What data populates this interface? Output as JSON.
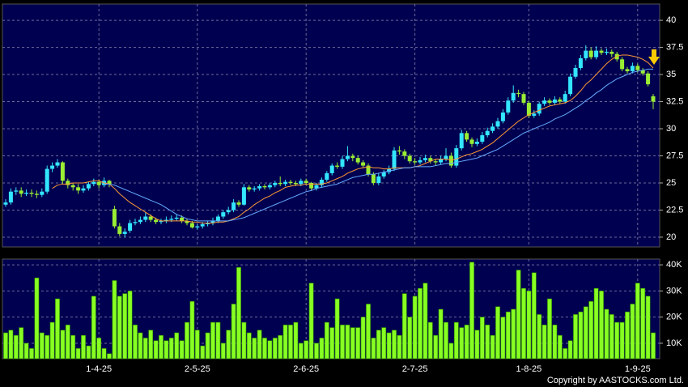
{
  "chart_data": [
    {
      "type": "candlestick",
      "categories": [
        null,
        null,
        null,
        null,
        null,
        null,
        null,
        null,
        null,
        null,
        null,
        null,
        null,
        null,
        null,
        null,
        null,
        null,
        "1-4-25",
        null,
        null,
        null,
        null,
        null,
        null,
        null,
        null,
        null,
        null,
        null,
        null,
        null,
        null,
        null,
        null,
        null,
        null,
        "2-5-25",
        null,
        null,
        null,
        null,
        null,
        null,
        null,
        null,
        null,
        null,
        null,
        null,
        null,
        null,
        null,
        null,
        null,
        null,
        null,
        null,
        "2-6-25",
        null,
        null,
        null,
        null,
        null,
        null,
        null,
        null,
        null,
        null,
        null,
        null,
        null,
        null,
        null,
        null,
        null,
        null,
        null,
        null,
        "2-7-25",
        null,
        null,
        null,
        null,
        null,
        null,
        null,
        null,
        null,
        null,
        null,
        null,
        null,
        null,
        null,
        null,
        null,
        null,
        null,
        null,
        null,
        "1-8-25",
        null,
        null,
        null,
        null,
        null,
        null,
        null,
        null,
        null,
        null,
        null,
        null,
        null,
        null,
        null,
        null,
        null,
        null,
        null,
        null,
        "1-9-25",
        null,
        null,
        null
      ],
      "ohlc": [
        [
          23.0,
          23.5,
          22.8,
          23.2
        ],
        [
          23.2,
          24.5,
          23.0,
          24.2
        ],
        [
          24.2,
          24.6,
          23.9,
          24.3
        ],
        [
          24.3,
          24.6,
          23.7,
          24.0
        ],
        [
          24.0,
          24.4,
          23.8,
          24.1
        ],
        [
          24.1,
          24.4,
          23.7,
          24.0
        ],
        [
          24.0,
          24.3,
          23.6,
          23.9
        ],
        [
          23.9,
          24.5,
          23.7,
          24.2
        ],
        [
          24.2,
          26.6,
          24.0,
          26.3
        ],
        [
          26.3,
          26.9,
          26.0,
          26.6
        ],
        [
          26.6,
          27.2,
          26.4,
          26.9
        ],
        [
          26.9,
          27.0,
          24.9,
          25.2
        ],
        [
          25.2,
          25.4,
          24.5,
          24.8
        ],
        [
          24.8,
          25.0,
          24.3,
          24.6
        ],
        [
          24.6,
          24.9,
          24.0,
          24.3
        ],
        [
          24.3,
          24.8,
          24.1,
          24.5
        ],
        [
          24.5,
          25.1,
          24.3,
          24.9
        ],
        [
          24.9,
          25.4,
          24.7,
          25.1
        ],
        [
          25.1,
          25.3,
          24.5,
          24.8
        ],
        [
          24.8,
          25.5,
          24.6,
          25.2
        ],
        [
          25.2,
          25.3,
          24.6,
          24.9
        ],
        [
          22.6,
          22.9,
          20.8,
          21.0
        ],
        [
          21.0,
          21.3,
          20.1,
          20.3
        ],
        [
          20.3,
          20.8,
          20.0,
          20.5
        ],
        [
          20.6,
          21.6,
          20.4,
          21.3
        ],
        [
          21.3,
          21.7,
          21.1,
          21.4
        ],
        [
          21.4,
          21.9,
          21.2,
          21.6
        ],
        [
          21.6,
          22.3,
          21.4,
          21.9
        ],
        [
          21.9,
          22.1,
          21.4,
          21.6
        ],
        [
          21.6,
          21.8,
          21.2,
          21.4
        ],
        [
          21.4,
          21.7,
          21.2,
          21.5
        ],
        [
          21.5,
          21.9,
          21.3,
          21.6
        ],
        [
          21.6,
          22.0,
          21.4,
          21.7
        ],
        [
          21.7,
          22.1,
          21.5,
          21.8
        ],
        [
          21.8,
          22.0,
          21.3,
          21.5
        ],
        [
          21.5,
          21.7,
          21.1,
          21.3
        ],
        [
          21.3,
          21.5,
          20.8,
          20.9
        ],
        [
          20.9,
          21.2,
          20.7,
          21.0
        ],
        [
          21.0,
          21.4,
          20.8,
          21.2
        ],
        [
          21.2,
          21.5,
          21.0,
          21.3
        ],
        [
          21.3,
          21.8,
          21.1,
          21.5
        ],
        [
          21.5,
          22.1,
          21.3,
          21.9
        ],
        [
          21.9,
          22.5,
          21.7,
          22.3
        ],
        [
          22.3,
          22.8,
          22.1,
          22.5
        ],
        [
          22.5,
          23.5,
          22.3,
          23.2
        ],
        [
          23.2,
          23.4,
          22.8,
          23.0
        ],
        [
          23.0,
          24.9,
          22.9,
          24.6
        ],
        [
          24.6,
          24.8,
          24.2,
          24.4
        ],
        [
          24.4,
          24.7,
          24.2,
          24.5
        ],
        [
          24.5,
          24.9,
          24.3,
          24.7
        ],
        [
          24.7,
          24.9,
          24.4,
          24.6
        ],
        [
          24.6,
          25.0,
          24.4,
          24.8
        ],
        [
          24.8,
          25.2,
          24.6,
          25.0
        ],
        [
          25.0,
          25.6,
          24.7,
          24.9
        ],
        [
          24.9,
          25.3,
          24.7,
          25.1
        ],
        [
          25.1,
          25.3,
          24.8,
          25.0
        ],
        [
          25.0,
          25.2,
          24.7,
          24.9
        ],
        [
          24.9,
          25.4,
          24.7,
          25.2
        ],
        [
          25.2,
          25.4,
          24.8,
          25.0
        ],
        [
          25.0,
          25.1,
          24.3,
          24.5
        ],
        [
          24.5,
          25.0,
          24.3,
          24.8
        ],
        [
          24.8,
          25.5,
          24.6,
          25.3
        ],
        [
          25.3,
          26.1,
          25.1,
          25.9
        ],
        [
          25.9,
          26.8,
          25.7,
          26.6
        ],
        [
          26.6,
          26.9,
          26.3,
          26.5
        ],
        [
          26.5,
          27.5,
          26.3,
          27.2
        ],
        [
          27.2,
          28.4,
          27.0,
          27.5
        ],
        [
          27.5,
          27.7,
          27.0,
          27.3
        ],
        [
          27.3,
          27.5,
          26.7,
          26.9
        ],
        [
          26.9,
          27.1,
          26.4,
          26.6
        ],
        [
          26.6,
          26.8,
          25.6,
          25.8
        ],
        [
          25.8,
          26.0,
          24.8,
          25.0
        ],
        [
          25.0,
          25.9,
          24.8,
          25.6
        ],
        [
          25.6,
          26.2,
          25.4,
          26.0
        ],
        [
          26.0,
          26.6,
          25.8,
          26.3
        ],
        [
          26.3,
          28.3,
          26.1,
          28.0
        ],
        [
          28.0,
          28.4,
          27.6,
          27.9
        ],
        [
          27.9,
          28.1,
          27.2,
          27.5
        ],
        [
          27.5,
          27.7,
          26.8,
          27.0
        ],
        [
          27.0,
          27.3,
          26.7,
          26.9
        ],
        [
          26.9,
          27.4,
          26.7,
          27.1
        ],
        [
          27.1,
          27.6,
          26.9,
          27.3
        ],
        [
          27.3,
          27.5,
          26.8,
          27.0
        ],
        [
          27.0,
          27.2,
          26.6,
          26.9
        ],
        [
          26.9,
          27.5,
          26.7,
          27.2
        ],
        [
          27.2,
          28.2,
          27.0,
          27.5
        ],
        [
          27.5,
          27.8,
          26.4,
          26.6
        ],
        [
          26.6,
          28.5,
          26.4,
          28.2
        ],
        [
          28.2,
          29.9,
          28.0,
          29.6
        ],
        [
          29.6,
          29.8,
          28.8,
          29.0
        ],
        [
          29.0,
          29.2,
          28.3,
          28.6
        ],
        [
          28.6,
          29.1,
          28.4,
          28.8
        ],
        [
          28.8,
          29.7,
          28.6,
          29.4
        ],
        [
          29.4,
          30.1,
          29.2,
          29.8
        ],
        [
          29.8,
          30.5,
          29.6,
          30.2
        ],
        [
          30.2,
          31.0,
          30.0,
          30.7
        ],
        [
          30.7,
          31.8,
          30.5,
          31.5
        ],
        [
          31.5,
          32.9,
          31.3,
          32.6
        ],
        [
          32.6,
          34.0,
          32.4,
          33.3
        ],
        [
          33.3,
          33.6,
          32.9,
          33.2
        ],
        [
          33.2,
          33.4,
          32.2,
          32.4
        ],
        [
          32.4,
          32.6,
          31.0,
          31.2
        ],
        [
          31.2,
          31.7,
          31.0,
          31.4
        ],
        [
          31.4,
          32.5,
          31.2,
          32.3
        ],
        [
          32.3,
          32.9,
          32.1,
          32.6
        ],
        [
          32.6,
          32.8,
          32.2,
          32.4
        ],
        [
          32.4,
          33.0,
          32.2,
          32.7
        ],
        [
          32.7,
          32.9,
          32.3,
          32.5
        ],
        [
          32.5,
          33.5,
          32.3,
          33.2
        ],
        [
          33.2,
          35.1,
          33.0,
          34.8
        ],
        [
          34.8,
          35.9,
          34.6,
          35.6
        ],
        [
          35.6,
          36.8,
          35.4,
          36.5
        ],
        [
          36.5,
          37.7,
          36.3,
          37.2
        ],
        [
          37.2,
          37.5,
          36.4,
          36.6
        ],
        [
          36.6,
          37.6,
          36.4,
          37.2
        ],
        [
          37.2,
          37.4,
          36.8,
          37.0
        ],
        [
          37.0,
          37.4,
          36.8,
          37.1
        ],
        [
          37.1,
          37.3,
          36.6,
          36.9
        ],
        [
          36.9,
          37.1,
          36.2,
          36.4
        ],
        [
          36.4,
          36.6,
          35.3,
          35.5
        ],
        [
          35.5,
          35.7,
          35.1,
          35.3
        ],
        [
          35.3,
          36.1,
          35.1,
          35.8
        ],
        [
          35.8,
          36.0,
          35.2,
          35.4
        ],
        [
          35.4,
          35.6,
          34.9,
          35.1
        ],
        [
          35.1,
          35.3,
          33.9,
          34.1
        ],
        [
          33.0,
          33.2,
          31.8,
          32.5
        ]
      ],
      "up_color": "#33e6ff",
      "down_color": "#99ee33",
      "series": [
        {
          "color": "#ff9933",
          "values": [
            null,
            null,
            null,
            null,
            null,
            null,
            null,
            null,
            null,
            24.5,
            24.8,
            24.9,
            24.9,
            25.0,
            25.0,
            25.0,
            25.1,
            25.2,
            25.2,
            25.0,
            24.9,
            24.5,
            24.0,
            23.6,
            23.2,
            22.9,
            22.6,
            22.3,
            22.0,
            21.7,
            21.5,
            21.5,
            21.5,
            21.5,
            21.5,
            21.5,
            21.4,
            21.4,
            21.3,
            21.3,
            21.3,
            21.4,
            21.4,
            21.5,
            21.7,
            21.9,
            22.3,
            22.6,
            23.0,
            23.3,
            23.6,
            23.8,
            24.1,
            24.3,
            24.6,
            24.7,
            24.8,
            24.8,
            24.9,
            24.9,
            24.9,
            24.9,
            25.0,
            25.2,
            25.4,
            25.6,
            25.9,
            26.1,
            26.3,
            26.4,
            26.5,
            26.4,
            26.4,
            26.3,
            26.3,
            26.4,
            26.4,
            26.4,
            26.4,
            26.5,
            26.6,
            26.8,
            27.0,
            27.2,
            27.2,
            27.2,
            27.1,
            27.2,
            27.4,
            27.6,
            27.7,
            27.9,
            28.1,
            28.4,
            28.7,
            29.1,
            29.5,
            29.9,
            30.3,
            30.7,
            31.0,
            31.3,
            31.5,
            31.7,
            31.9,
            32.1,
            32.2,
            32.3,
            32.4,
            32.6,
            33.0,
            33.5,
            34.1,
            34.5,
            35.0,
            35.5,
            36.0,
            36.4,
            36.7,
            36.8,
            36.8,
            36.7,
            36.6,
            36.4,
            36.1,
            35.6
          ]
        },
        {
          "color": "#66aaff",
          "values": [
            null,
            null,
            null,
            null,
            null,
            null,
            null,
            null,
            null,
            null,
            null,
            null,
            null,
            null,
            null,
            null,
            null,
            null,
            null,
            24.9,
            24.9,
            24.8,
            24.6,
            24.4,
            24.2,
            24.0,
            23.8,
            23.6,
            23.4,
            23.2,
            23.0,
            22.7,
            22.4,
            22.1,
            21.9,
            21.7,
            21.6,
            21.5,
            21.5,
            21.5,
            21.5,
            21.5,
            21.5,
            21.5,
            21.6,
            21.7,
            21.8,
            22.0,
            22.2,
            22.4,
            22.6,
            22.8,
            23.0,
            23.2,
            23.4,
            23.6,
            23.8,
            24.0,
            24.2,
            24.3,
            24.5,
            24.6,
            24.7,
            24.8,
            24.9,
            25.1,
            25.3,
            25.5,
            25.6,
            25.7,
            25.8,
            25.8,
            25.9,
            26.0,
            26.1,
            26.2,
            26.3,
            26.4,
            26.4,
            26.5,
            26.5,
            26.5,
            26.5,
            26.6,
            26.7,
            26.8,
            26.8,
            26.9,
            27.0,
            27.1,
            27.2,
            27.3,
            27.5,
            27.7,
            27.9,
            28.1,
            28.4,
            28.7,
            29.0,
            29.3,
            29.6,
            29.8,
            30.0,
            30.2,
            30.4,
            30.6,
            30.9,
            31.1,
            31.3,
            31.6,
            31.9,
            32.2,
            32.6,
            32.9,
            33.3,
            33.6,
            34.0,
            34.3,
            34.6,
            34.8,
            35.0,
            35.2,
            35.3,
            35.4,
            35.5,
            35.5
          ]
        }
      ],
      "ylim": [
        19.1,
        41.5
      ],
      "yticks": [
        20,
        22.5,
        25,
        27.5,
        30,
        32.5,
        35,
        37.5,
        40
      ],
      "grid": true
    },
    {
      "type": "bar",
      "color": "#88ff22",
      "values": [
        14000,
        15000,
        13000,
        16000,
        10000,
        8000,
        35000,
        14000,
        13000,
        18000,
        27000,
        15000,
        17000,
        13000,
        8000,
        13000,
        9000,
        28000,
        12000,
        8000,
        6000,
        34000,
        28000,
        29000,
        30000,
        17000,
        14000,
        12000,
        15000,
        11000,
        13000,
        11000,
        12000,
        14000,
        11000,
        18000,
        26000,
        15000,
        9000,
        14000,
        18000,
        18000,
        10000,
        15000,
        25000,
        39000,
        18000,
        14000,
        12000,
        15000,
        12000,
        11000,
        12000,
        13000,
        17000,
        17000,
        18000,
        10000,
        11000,
        33000,
        10000,
        12000,
        18000,
        16000,
        27000,
        17000,
        17000,
        16000,
        16000,
        20000,
        25000,
        12000,
        15000,
        16000,
        14000,
        15000,
        13000,
        29000,
        20000,
        28000,
        31000,
        33000,
        18000,
        13000,
        23000,
        18000,
        10000,
        18000,
        16000,
        17000,
        41000,
        15000,
        20000,
        17000,
        13000,
        24000,
        20000,
        22000,
        23000,
        38000,
        31000,
        30000,
        37000,
        21000,
        17000,
        27000,
        17000,
        13000,
        8000,
        11000,
        21000,
        22000,
        24000,
        26000,
        31000,
        30000,
        23000,
        21000,
        18000,
        18000,
        22000,
        25000,
        33000,
        31000,
        28000,
        14000
      ],
      "ylim": [
        4100,
        42200
      ],
      "yticks": [
        {
          "value": 10000,
          "label": "10K"
        },
        {
          "value": 20000,
          "label": "20K"
        },
        {
          "value": 30000,
          "label": "30K"
        },
        {
          "value": 40000,
          "label": "40K"
        }
      ],
      "grid": true
    }
  ],
  "footer": {
    "copyright": "Copyright by AASTOCKS.com Ltd."
  }
}
